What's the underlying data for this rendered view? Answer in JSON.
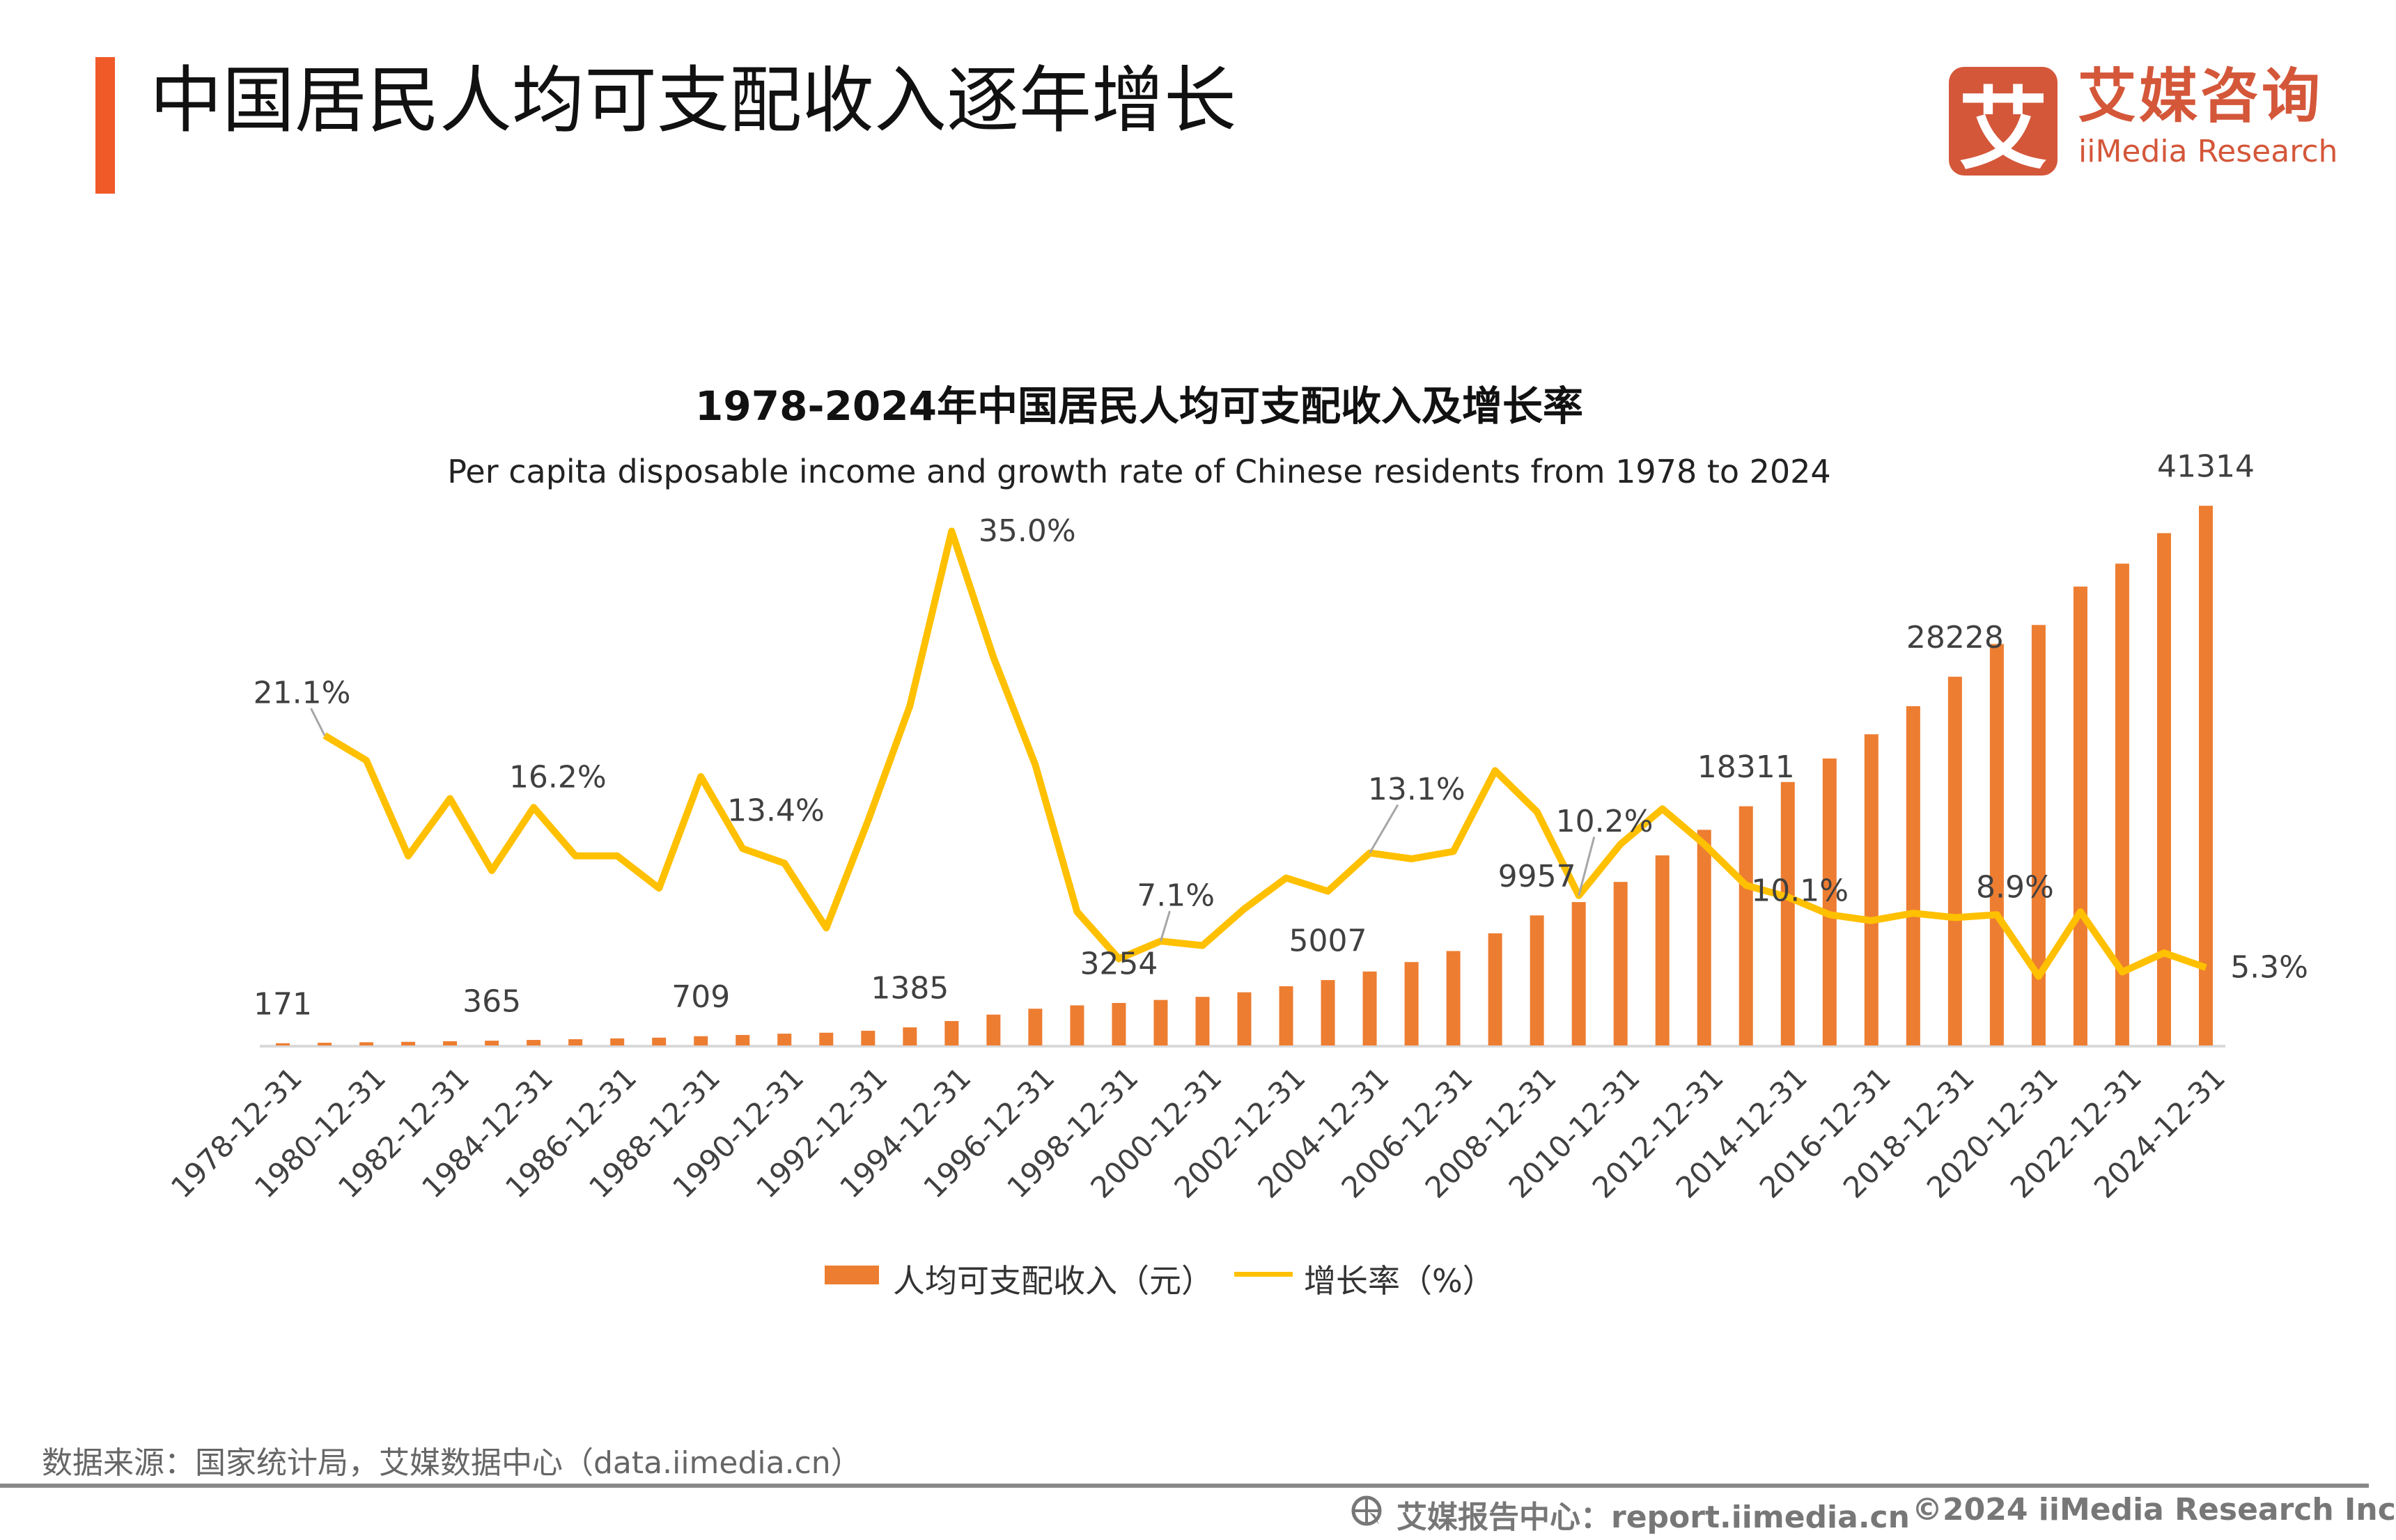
{
  "header": {
    "title": "中国居民人均可支配收入逐年增长",
    "accent_color": "#F05A28"
  },
  "logo": {
    "mark": "艾",
    "name_cn": "艾媒咨询",
    "name_en": "iiMedia Research",
    "color": "#D4573A"
  },
  "chart_data": {
    "type": "bar+line",
    "title": "1978-2024年中国居民人均可支配收入及增长率",
    "subtitle": "Per capita disposable income and growth rate of Chinese residents from 1978 to 2024",
    "years": [
      1978,
      1979,
      1980,
      1981,
      1982,
      1983,
      1984,
      1985,
      1986,
      1987,
      1988,
      1989,
      1990,
      1991,
      1992,
      1993,
      1994,
      1995,
      1996,
      1997,
      1998,
      1999,
      2000,
      2001,
      2002,
      2003,
      2004,
      2005,
      2006,
      2007,
      2008,
      2009,
      2010,
      2011,
      2012,
      2013,
      2014,
      2015,
      2016,
      2017,
      2018,
      2019,
      2020,
      2021,
      2022,
      2023,
      2024
    ],
    "tick_labels": [
      "1978-12-31",
      "1980-12-31",
      "1982-12-31",
      "1984-12-31",
      "1986-12-31",
      "1988-12-31",
      "1990-12-31",
      "1992-12-31",
      "1994-12-31",
      "1996-12-31",
      "1998-12-31",
      "2000-12-31",
      "2002-12-31",
      "2004-12-31",
      "2006-12-31",
      "2008-12-31",
      "2010-12-31",
      "2012-12-31",
      "2014-12-31",
      "2016-12-31",
      "2018-12-31",
      "2020-12-31",
      "2022-12-31",
      "2024-12-31"
    ],
    "series": [
      {
        "name": "人均可支配收入（元）",
        "type": "bar",
        "color": "#ED7D31",
        "ylim": [
          0,
          45000
        ],
        "values": [
          171,
          207,
          247,
          279,
          326,
          365,
          424,
          479,
          540,
          598,
          709,
          804,
          903,
          976,
          1125,
          1385,
          1870,
          2363,
          2814,
          3070,
          3254,
          3485,
          3721,
          4070,
          4532,
          5007,
          5661,
          6385,
          7229,
          8584,
          9957,
          10977,
          12520,
          14551,
          16510,
          18311,
          20167,
          21966,
          23821,
          25974,
          28228,
          30733,
          32189,
          35128,
          36883,
          39218,
          41314
        ],
        "data_labels": [
          {
            "year": 1978,
            "text": "171"
          },
          {
            "year": 1983,
            "text": "365"
          },
          {
            "year": 1988,
            "text": "709"
          },
          {
            "year": 1993,
            "text": "1385"
          },
          {
            "year": 1998,
            "text": "3254"
          },
          {
            "year": 2003,
            "text": "5007"
          },
          {
            "year": 2008,
            "text": "9957"
          },
          {
            "year": 2013,
            "text": "18311"
          },
          {
            "year": 2018,
            "text": "28228"
          },
          {
            "year": 2024,
            "text": "41314"
          }
        ]
      },
      {
        "name": "增长率（%）",
        "type": "line",
        "color": "#FFC000",
        "ylim": [
          0,
          40
        ],
        "values": [
          null,
          21.1,
          19.4,
          12.9,
          16.8,
          11.9,
          16.2,
          12.9,
          12.9,
          10.7,
          18.3,
          13.4,
          12.4,
          8.0,
          15.3,
          23.1,
          35.0,
          26.4,
          19.1,
          9.1,
          5.9,
          7.1,
          6.8,
          9.3,
          11.4,
          10.5,
          13.1,
          12.7,
          13.2,
          18.7,
          15.9,
          10.2,
          13.7,
          16.1,
          13.7,
          10.9,
          10.1,
          8.9,
          8.5,
          9.0,
          8.7,
          8.9,
          4.7,
          9.1,
          5.0,
          6.3,
          5.3
        ],
        "data_labels": [
          {
            "year": 1979,
            "text": "21.1%"
          },
          {
            "year": 1984,
            "text": "16.2%"
          },
          {
            "year": 1989,
            "text": "13.4%"
          },
          {
            "year": 1994,
            "text": "35.0%"
          },
          {
            "year": 1999,
            "text": "7.1%"
          },
          {
            "year": 2004,
            "text": "13.1%"
          },
          {
            "year": 2009,
            "text": "10.2%"
          },
          {
            "year": 2014,
            "text": "10.1%"
          },
          {
            "year": 2019,
            "text": "8.9%"
          },
          {
            "year": 2024,
            "text": "5.3%"
          }
        ]
      }
    ],
    "legend_position": "bottom",
    "grid": false
  },
  "legend": {
    "bar_label": "人均可支配收入（元）",
    "line_label": "增长率（%）"
  },
  "source": "数据来源：国家统计局，艾媒数据中心（data.iimedia.cn）",
  "footer": {
    "report": "艾媒报告中心：report.iimedia.cn",
    "copyright": "©2024  iiMedia Research  Inc"
  }
}
